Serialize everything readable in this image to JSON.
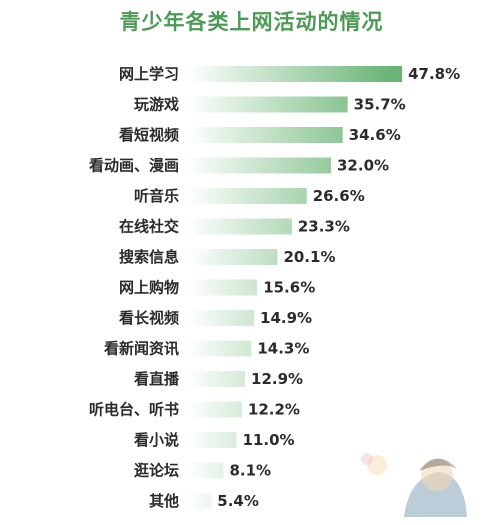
{
  "title": "青少年各类上网活动的情况",
  "colors": {
    "title": "#4d9a57",
    "bar_start": "#ffffff",
    "bar_end": "#6ab575",
    "text": "#2b2b2b"
  },
  "chart_data": {
    "type": "bar",
    "orientation": "horizontal",
    "title": "青少年各类上网活动的情况",
    "xlabel": "",
    "ylabel": "",
    "unit": "%",
    "grid": false,
    "legend": "none",
    "xlim": [
      0,
      50
    ],
    "categories": [
      "网上学习",
      "玩游戏",
      "看短视频",
      "看动画、漫画",
      "听音乐",
      "在线社交",
      "搜索信息",
      "网上购物",
      "看长视频",
      "看新闻资讯",
      "看直播",
      "听电台、听书",
      "看小说",
      "逛论坛",
      "其他"
    ],
    "values": [
      47.8,
      35.7,
      34.6,
      32.0,
      26.6,
      23.3,
      20.1,
      15.6,
      14.9,
      14.3,
      12.9,
      12.2,
      11.0,
      8.1,
      5.4
    ],
    "value_labels": [
      "47.8%",
      "35.7%",
      "34.6%",
      "32.0%",
      "26.6%",
      "23.3%",
      "20.1%",
      "15.6%",
      "14.9%",
      "14.3%",
      "12.9%",
      "12.2%",
      "11.0%",
      "8.1%",
      "5.4%"
    ]
  }
}
